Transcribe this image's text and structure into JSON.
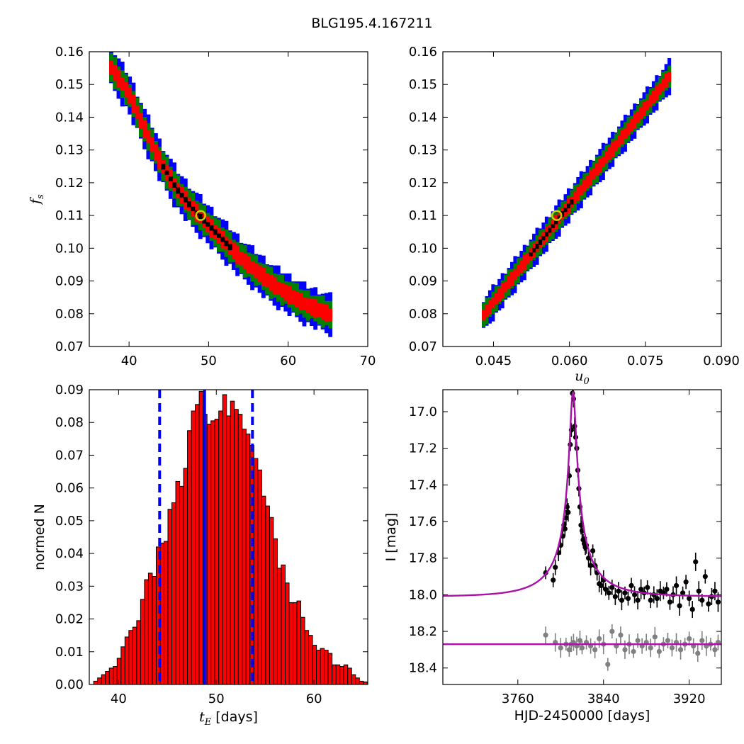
{
  "title": "BLG195.4.167211",
  "chart_data": [
    {
      "type": "heatmap",
      "panel": "top-left",
      "xlabel": "",
      "ylabel": "f_s",
      "xlim": [
        35,
        70
      ],
      "ylim": [
        0.07,
        0.16
      ],
      "xticks": [
        40,
        50,
        60,
        70
      ],
      "yticks": [
        0.07,
        0.08,
        0.09,
        0.1,
        0.11,
        0.12,
        0.13,
        0.14,
        0.15,
        0.16
      ],
      "yticklabels": [
        "0.07",
        "0.08",
        "0.09",
        "0.10",
        "0.11",
        "0.12",
        "0.13",
        "0.14",
        "0.15",
        "0.16"
      ],
      "band_centerline": [
        [
          37.5,
          0.156
        ],
        [
          40,
          0.147
        ],
        [
          42,
          0.136
        ],
        [
          44,
          0.126
        ],
        [
          46,
          0.118
        ],
        [
          48,
          0.112
        ],
        [
          50,
          0.107
        ],
        [
          52,
          0.102
        ],
        [
          54,
          0.097
        ],
        [
          56,
          0.093
        ],
        [
          58,
          0.089
        ],
        [
          60,
          0.086
        ],
        [
          62,
          0.083
        ],
        [
          64,
          0.081
        ],
        [
          65.5,
          0.0795
        ]
      ],
      "levels": [
        {
          "name": "3-sigma",
          "color": "#0000ff",
          "halfwidth_y": 0.0058
        },
        {
          "name": "2-sigma",
          "color": "#008000",
          "halfwidth_y": 0.0042
        },
        {
          "name": "1-sigma",
          "color": "#ff0000",
          "halfwidth_y": 0.0024
        },
        {
          "name": "densest",
          "color": "#000000",
          "halfwidth_y": 0.0008,
          "xrange": [
            44,
            53
          ]
        }
      ],
      "best_fit": {
        "x": 49,
        "y": 0.11,
        "color": "#cccc00"
      }
    },
    {
      "type": "heatmap",
      "panel": "top-right",
      "xlabel": "u_0",
      "ylabel": "",
      "xlim": [
        0.035,
        0.09
      ],
      "ylim": [
        0.07,
        0.16
      ],
      "xticks": [
        0.045,
        0.06,
        0.075,
        0.09
      ],
      "xticklabels": [
        "0.045",
        "0.060",
        "0.075",
        "0.090"
      ],
      "yticks": [
        0.07,
        0.08,
        0.09,
        0.1,
        0.11,
        0.12,
        0.13,
        0.14,
        0.15,
        0.16
      ],
      "yticklabels": [
        "0.07",
        "0.08",
        "0.09",
        "0.10",
        "0.11",
        "0.12",
        "0.13",
        "0.14",
        "0.15",
        "0.16"
      ],
      "band_centerline": [
        [
          0.0427,
          0.079
        ],
        [
          0.08,
          0.153
        ]
      ],
      "levels": [
        {
          "name": "3-sigma",
          "color": "#0000ff",
          "halfwidth_y": 0.0048
        },
        {
          "name": "2-sigma",
          "color": "#008000",
          "halfwidth_y": 0.0034
        },
        {
          "name": "1-sigma",
          "color": "#ff0000",
          "halfwidth_y": 0.0019
        },
        {
          "name": "densest",
          "color": "#000000",
          "halfwidth_y": 0.0007,
          "xrange": [
            0.052,
            0.061
          ]
        }
      ],
      "best_fit": {
        "x": 0.0575,
        "y": 0.11,
        "color": "#cccc00"
      }
    },
    {
      "type": "bar",
      "panel": "bottom-left",
      "xlabel": "t_E [days]",
      "ylabel": "normed N",
      "xlim": [
        37,
        65.5
      ],
      "ylim": [
        0,
        0.09
      ],
      "xticks": [
        40,
        50,
        60
      ],
      "yticks": [
        0,
        0.01,
        0.02,
        0.03,
        0.04,
        0.05,
        0.06,
        0.07,
        0.08,
        0.09
      ],
      "yticklabels": [
        "0.00",
        "0.01",
        "0.02",
        "0.03",
        "0.04",
        "0.05",
        "0.06",
        "0.07",
        "0.08",
        "0.09"
      ],
      "bin_start": 37.45,
      "bin_width": 0.4,
      "values": [
        0.001,
        0.002,
        0.003,
        0.004,
        0.005,
        0.0055,
        0.008,
        0.0115,
        0.0145,
        0.0165,
        0.0175,
        0.0195,
        0.026,
        0.032,
        0.034,
        0.033,
        0.042,
        0.0432,
        0.0437,
        0.0535,
        0.0555,
        0.062,
        0.0605,
        0.066,
        0.0775,
        0.0835,
        0.0855,
        0.0895,
        0.0825,
        0.0795,
        0.0805,
        0.081,
        0.0835,
        0.0885,
        0.082,
        0.0865,
        0.084,
        0.0825,
        0.078,
        0.0765,
        0.073,
        0.069,
        0.0655,
        0.0575,
        0.0545,
        0.051,
        0.0445,
        0.0355,
        0.0365,
        0.031,
        0.025,
        0.025,
        0.0255,
        0.0205,
        0.0165,
        0.015,
        0.012,
        0.0105,
        0.011,
        0.0105,
        0.0095,
        0.006,
        0.006,
        0.0055,
        0.006,
        0.005,
        0.003,
        0.002,
        0.001,
        0.0008
      ],
      "vlines": [
        {
          "x": 44.2,
          "color": "#0000ff",
          "style": "dashed"
        },
        {
          "x": 48.8,
          "color": "#0000ff",
          "style": "solid"
        },
        {
          "x": 53.7,
          "color": "#0000ff",
          "style": "dashed"
        }
      ],
      "bar_color": "#ff0000"
    },
    {
      "type": "line",
      "panel": "bottom-right",
      "xlabel": "HJD-2450000 [days]",
      "ylabel": "I [mag]",
      "xlim": [
        3690,
        3950
      ],
      "ylim": [
        18.49,
        16.88
      ],
      "y_inverted": true,
      "xticks": [
        3760,
        3840,
        3920
      ],
      "yticks": [
        17.0,
        17.2,
        17.4,
        17.6,
        17.8,
        18.0,
        18.2,
        18.4
      ],
      "yticklabels": [
        "17.0",
        "17.2",
        "17.4",
        "17.6",
        "17.8",
        "18.0",
        "18.2",
        "18.4"
      ],
      "model": {
        "name": "",
        "color": "#aa10aa",
        "t0": 3811.5,
        "tE": 48.8,
        "u0": 0.0575,
        "baseline": 18.01
      },
      "residual_baseline": {
        "value": 18.27,
        "color": "#aa10aa"
      },
      "series": [
        {
          "name": "",
          "color": "#000000",
          "t": [
            3786,
            3793,
            3795,
            3798,
            3800,
            3802,
            3803,
            3804,
            3805,
            3806,
            3807,
            3808,
            3809,
            3810,
            3811,
            3812,
            3813,
            3814,
            3815,
            3816,
            3817,
            3818,
            3819,
            3820,
            3821,
            3822,
            3823,
            3824,
            3826,
            3828,
            3830,
            3832,
            3834,
            3836,
            3838,
            3840,
            3842,
            3845,
            3848,
            3851,
            3854,
            3857,
            3860,
            3863,
            3866,
            3869,
            3872,
            3875,
            3878,
            3881,
            3884,
            3887,
            3890,
            3893,
            3896,
            3899,
            3902,
            3905,
            3908,
            3911,
            3914,
            3917,
            3920,
            3923,
            3926,
            3929,
            3932,
            3935,
            3938,
            3941,
            3944,
            3947
          ],
          "mag": [
            17.88,
            17.92,
            17.85,
            17.77,
            17.73,
            17.68,
            17.62,
            17.64,
            17.58,
            17.52,
            17.55,
            17.35,
            17.18,
            17.1,
            16.9,
            16.93,
            17.08,
            17.14,
            17.2,
            17.32,
            17.42,
            17.52,
            17.62,
            17.65,
            17.7,
            17.72,
            17.74,
            17.73,
            17.8,
            17.84,
            17.76,
            17.84,
            17.88,
            17.94,
            17.95,
            17.92,
            17.97,
            17.99,
            17.96,
            18.01,
            17.98,
            18.03,
            17.99,
            18.02,
            17.95,
            18.0,
            18.03,
            17.97,
            17.99,
            17.96,
            18.03,
            18.0,
            18.02,
            17.98,
            17.99,
            17.97,
            18.04,
            18.0,
            17.95,
            18.06,
            17.99,
            17.93,
            18.02,
            18.08,
            17.82,
            17.98,
            18.03,
            17.9,
            18.05,
            18.01,
            17.98,
            18.04
          ]
        },
        {
          "name": "",
          "color": "#808080",
          "t": [
            3786,
            3795,
            3800,
            3805,
            3808,
            3810,
            3812,
            3815,
            3818,
            3820,
            3824,
            3828,
            3832,
            3836,
            3840,
            3844,
            3848,
            3852,
            3856,
            3860,
            3864,
            3868,
            3872,
            3876,
            3880,
            3884,
            3888,
            3892,
            3896,
            3900,
            3904,
            3908,
            3912,
            3916,
            3920,
            3924,
            3928,
            3932,
            3936,
            3940,
            3944,
            3947
          ],
          "mag": [
            18.22,
            18.26,
            18.29,
            18.27,
            18.3,
            18.27,
            18.26,
            18.28,
            18.25,
            18.29,
            18.26,
            18.28,
            18.3,
            18.24,
            18.27,
            18.38,
            18.2,
            18.28,
            18.22,
            18.3,
            18.27,
            18.31,
            18.25,
            18.28,
            18.26,
            18.29,
            18.23,
            18.31,
            18.27,
            18.25,
            18.29,
            18.26,
            18.3,
            18.27,
            18.24,
            18.28,
            18.32,
            18.25,
            18.28,
            18.27,
            18.3,
            18.26
          ]
        }
      ]
    }
  ]
}
